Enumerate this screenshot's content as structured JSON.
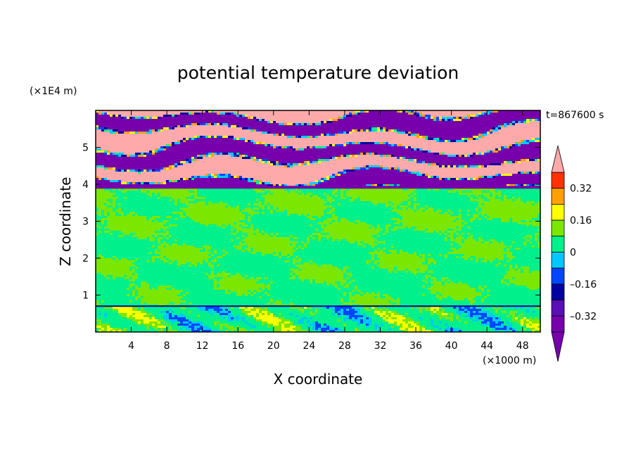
{
  "chart_data": {
    "type": "heatmap",
    "title": "potential temperature deviation",
    "xlabel": "X coordinate",
    "ylabel": "Z coordinate",
    "x_unit": "(×1000 m)",
    "y_unit": "(×1E4 m)",
    "time_label": "t=867600 s",
    "xlim": [
      0,
      50
    ],
    "ylim": [
      0,
      6
    ],
    "x_ticks": [
      4,
      8,
      12,
      16,
      20,
      24,
      28,
      32,
      36,
      40,
      44,
      48
    ],
    "y_ticks": [
      1,
      2,
      3,
      4,
      5
    ],
    "colorbar": {
      "levels": [
        -0.4,
        -0.32,
        -0.24,
        -0.16,
        -0.08,
        0,
        0.08,
        0.16,
        0.24,
        0.32,
        0.4
      ],
      "labels": [
        {
          "value": 0.32,
          "text": "0.32"
        },
        {
          "value": 0.16,
          "text": "0.16"
        },
        {
          "value": 0,
          "text": "0"
        },
        {
          "value": -0.16,
          "text": "–0.16"
        },
        {
          "value": -0.32,
          "text": "–0.32"
        }
      ],
      "colors": [
        "#7800ac",
        "#5a0fb4",
        "#0000a0",
        "#0046ff",
        "#00c8ff",
        "#00f08c",
        "#7be600",
        "#ffff00",
        "#ffa000",
        "#ff3200",
        "#ffaaaa"
      ],
      "under_color": "#7800ac",
      "over_color": "#ffaaaa"
    },
    "field_bands": [
      {
        "z_range": [
          3.9,
          6.0
        ],
        "description_colors": [
          "#7800ac",
          "#ffaaaa"
        ]
      },
      {
        "z_range": [
          0.7,
          3.9
        ],
        "description_colors": [
          "#00f08c",
          "#7be600"
        ]
      },
      {
        "z_range": [
          0.0,
          0.7
        ],
        "description_colors": [
          "#00f08c",
          "#7be600",
          "#00c8ff",
          "#ffff00",
          "#ff3200"
        ]
      }
    ]
  }
}
